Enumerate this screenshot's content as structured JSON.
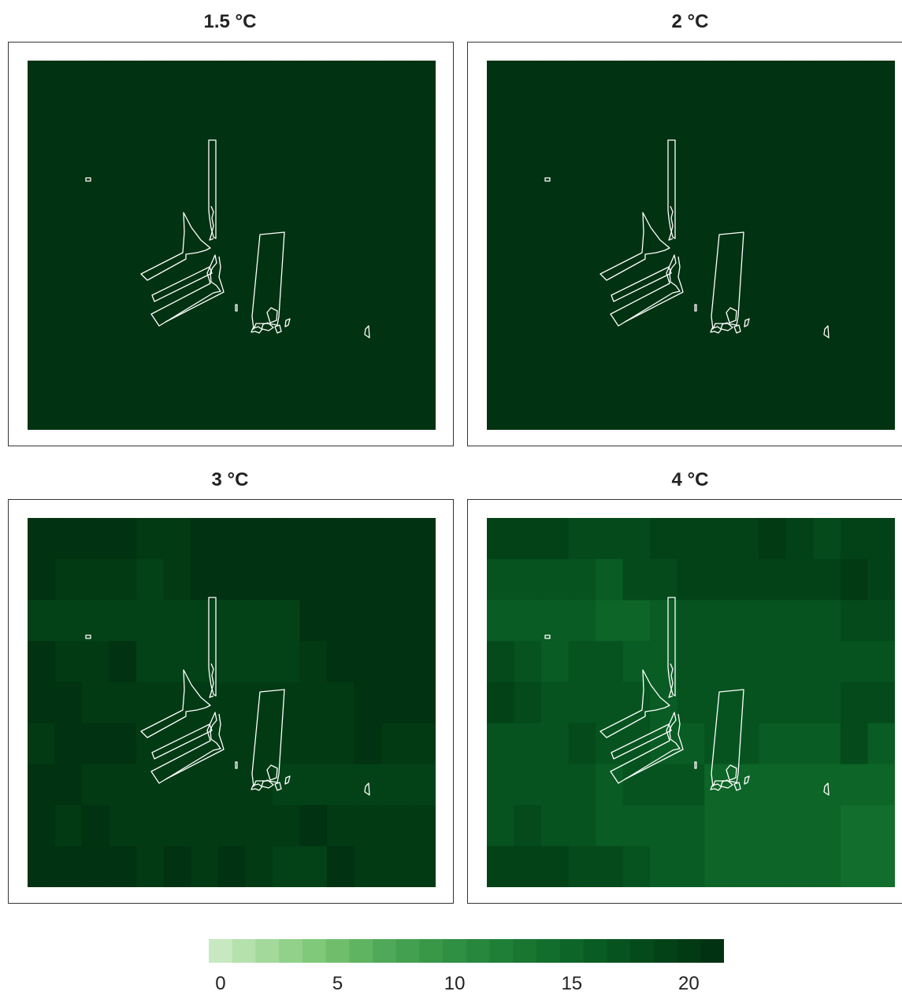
{
  "panels": [
    {
      "title": "1.5 °C",
      "cells": [
        [
          22,
          22,
          22,
          22,
          22,
          22,
          22,
          22,
          22,
          22,
          22,
          22,
          22,
          22,
          22
        ],
        [
          22,
          22,
          22,
          22,
          22,
          22,
          22,
          22,
          22,
          22,
          22,
          22,
          22,
          22,
          22
        ],
        [
          22,
          22,
          22,
          22,
          22,
          22,
          22,
          22,
          22,
          22,
          22,
          22,
          22,
          22,
          22
        ],
        [
          22,
          22,
          22,
          22,
          22,
          22,
          22,
          22,
          22,
          22,
          22,
          22,
          22,
          22,
          22
        ],
        [
          22,
          22,
          22,
          22,
          22,
          22,
          22,
          22,
          22,
          22,
          22,
          22,
          22,
          22,
          22
        ],
        [
          22,
          22,
          22,
          22,
          22,
          22,
          22,
          22,
          22,
          22,
          22,
          22,
          22,
          22,
          22
        ],
        [
          22,
          22,
          22,
          22,
          22,
          22,
          22,
          22,
          22,
          22,
          22,
          22,
          22,
          22,
          22
        ],
        [
          22,
          22,
          22,
          22,
          22,
          22,
          22,
          22,
          22,
          22,
          22,
          22,
          22,
          22,
          22
        ],
        [
          22,
          22,
          22,
          22,
          22,
          22,
          22,
          22,
          22,
          22,
          22,
          22,
          22,
          22,
          22
        ]
      ]
    },
    {
      "title": "2 °C",
      "cells": [
        [
          22,
          22,
          22,
          22,
          22,
          22,
          22,
          22,
          22,
          22,
          22,
          22,
          22,
          22,
          22
        ],
        [
          22,
          22,
          22,
          22,
          22,
          22,
          22,
          22,
          22,
          22,
          22,
          22,
          22,
          22,
          22
        ],
        [
          22,
          22,
          22,
          22,
          22,
          22,
          22,
          22,
          22,
          22,
          22,
          22,
          22,
          22,
          22
        ],
        [
          22,
          22,
          22,
          22,
          22,
          22,
          22,
          22,
          22,
          22,
          22,
          22,
          22,
          22,
          22
        ],
        [
          22,
          22,
          22,
          22,
          22,
          22,
          22,
          22,
          22,
          22,
          22,
          22,
          22,
          22,
          22
        ],
        [
          22,
          22,
          22,
          22,
          22,
          22,
          22,
          22,
          22,
          22,
          22,
          22,
          22,
          22,
          22
        ],
        [
          22,
          22,
          22,
          22,
          22,
          22,
          22,
          22,
          22,
          22,
          22,
          22,
          22,
          22,
          22
        ],
        [
          22,
          22,
          22,
          22,
          22,
          22,
          22,
          22,
          22,
          22,
          22,
          22,
          22,
          22,
          22
        ],
        [
          22,
          22,
          22,
          22,
          22,
          22,
          22,
          22,
          22,
          22,
          22,
          22,
          22,
          22,
          22
        ]
      ]
    },
    {
      "title": "3 °C",
      "cells": [
        [
          21,
          21,
          21,
          21,
          20,
          20,
          21,
          21,
          21,
          21,
          21,
          21,
          21,
          21,
          21
        ],
        [
          21,
          20,
          20,
          20,
          19,
          20,
          21,
          21,
          21,
          21,
          21,
          21,
          21,
          21,
          21
        ],
        [
          19,
          19,
          19,
          19,
          19,
          19,
          19,
          19,
          19,
          19,
          21,
          21,
          21,
          21,
          21
        ],
        [
          21,
          20,
          20,
          21,
          19,
          19,
          19,
          19,
          19,
          19,
          20,
          21,
          21,
          21,
          21
        ],
        [
          21,
          21,
          20,
          20,
          20,
          20,
          20,
          20,
          20,
          20,
          20,
          20,
          21,
          21,
          21
        ],
        [
          20,
          21,
          21,
          21,
          20,
          20,
          20,
          20,
          20,
          20,
          20,
          20,
          21,
          20,
          20
        ],
        [
          21,
          21,
          20,
          20,
          20,
          20,
          20,
          20,
          20,
          19,
          19,
          19,
          19,
          19,
          19
        ],
        [
          21,
          20,
          21,
          20,
          20,
          20,
          20,
          20,
          20,
          20,
          21,
          20,
          20,
          20,
          20
        ],
        [
          21,
          21,
          21,
          21,
          20,
          21,
          20,
          21,
          20,
          19,
          19,
          21,
          20,
          20,
          20
        ]
      ]
    },
    {
      "title": "4 °C",
      "cells": [
        [
          19,
          19,
          19,
          18,
          18,
          18,
          19,
          19,
          19,
          19,
          20,
          19,
          18,
          19,
          19
        ],
        [
          17,
          17,
          17,
          17,
          16,
          18,
          18,
          19,
          19,
          19,
          19,
          19,
          19,
          20,
          19
        ],
        [
          16,
          16,
          16,
          16,
          15,
          15,
          16,
          17,
          17,
          17,
          17,
          17,
          17,
          18,
          18
        ],
        [
          18,
          17,
          16,
          17,
          17,
          16,
          16,
          17,
          17,
          17,
          17,
          17,
          17,
          17,
          17
        ],
        [
          19,
          18,
          17,
          17,
          17,
          17,
          16,
          17,
          17,
          17,
          17,
          17,
          17,
          18,
          18
        ],
        [
          17,
          17,
          17,
          18,
          17,
          17,
          16,
          16,
          17,
          17,
          16,
          16,
          16,
          18,
          16
        ],
        [
          17,
          17,
          17,
          17,
          16,
          17,
          17,
          17,
          15,
          15,
          15,
          15,
          15,
          15,
          15
        ],
        [
          17,
          18,
          17,
          17,
          16,
          16,
          16,
          16,
          15,
          15,
          15,
          15,
          15,
          14,
          14
        ],
        [
          19,
          19,
          19,
          18,
          18,
          17,
          16,
          16,
          15,
          15,
          15,
          15,
          15,
          14,
          14
        ]
      ]
    }
  ],
  "colorbar": {
    "palette": [
      "#c7e9c0",
      "#b5e1ad",
      "#a3d99b",
      "#91d18a",
      "#80c97a",
      "#6fbe6c",
      "#5fb462",
      "#4fa958",
      "#42a050",
      "#389848",
      "#2f8f43",
      "#27873d",
      "#1f7f37",
      "#187631",
      "#126e2c",
      "#0d6527",
      "#095c23",
      "#06531f",
      "#044a1b",
      "#034217",
      "#023a14",
      "#013211"
    ],
    "min": 0,
    "max": 22,
    "ticks": [
      "0",
      "5",
      "10",
      "15",
      "20"
    ],
    "tick_values": [
      0,
      5,
      10,
      15,
      20
    ]
  }
}
